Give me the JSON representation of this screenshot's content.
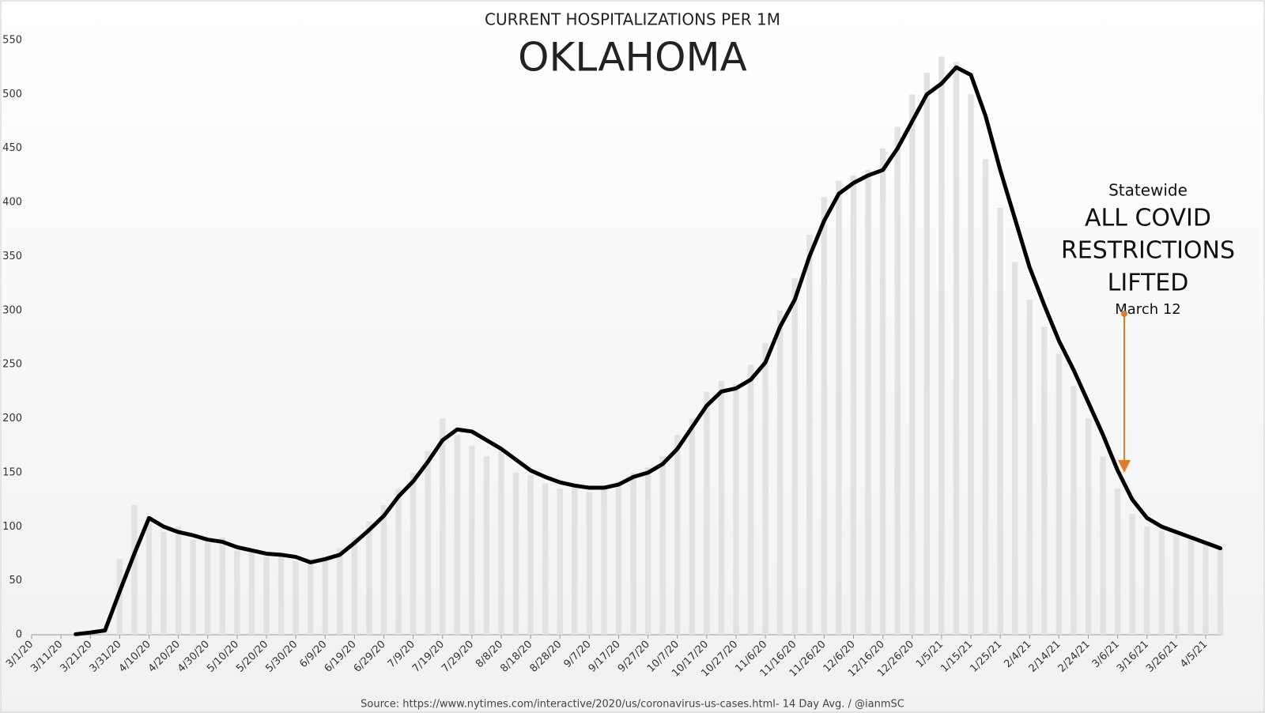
{
  "chart_data": {
    "type": "line",
    "title": "CURRENT HOSPITALIZATIONS PER 1M",
    "subtitle": "OKLAHOMA",
    "source": "Source: https://www.nytimes.com/interactive/2020/us/coronavirus-us-cases.html- 14 Day Avg. / @ianmSC",
    "annotation": {
      "lines": [
        "Statewide",
        "ALL COVID",
        "RESTRICTIONS",
        "LIFTED"
      ],
      "date": "March 12",
      "color": "#e07b2a"
    },
    "categories": [
      "3/1/20",
      null,
      "3/11/20",
      null,
      "3/21/20",
      null,
      "3/31/20",
      null,
      "4/10/20",
      null,
      "4/20/20",
      null,
      "4/30/20",
      null,
      "5/10/20",
      null,
      "5/20/20",
      null,
      "5/30/20",
      null,
      "6/9/20",
      null,
      "6/19/20",
      null,
      "6/29/20",
      null,
      "7/9/20",
      null,
      "7/19/20",
      null,
      "7/29/20",
      null,
      "8/8/20",
      null,
      "8/18/20",
      null,
      "8/28/20",
      null,
      "9/7/20",
      null,
      "9/17/20",
      null,
      "9/27/20",
      null,
      "10/7/20",
      null,
      "10/17/20",
      null,
      "10/27/20",
      null,
      "11/6/20",
      null,
      "11/16/20",
      null,
      "11/26/20",
      null,
      "12/6/20",
      null,
      "12/16/20",
      null,
      "12/26/20",
      null,
      "1/5/21",
      null,
      "1/15/21",
      null,
      "1/25/21",
      null,
      "2/4/21",
      null,
      "2/14/21",
      null,
      "2/24/21",
      null,
      "3/6/21",
      null,
      "3/16/21",
      null,
      "3/26/21",
      null,
      "4/5/21",
      null
    ],
    "series": [
      {
        "type": "bar",
        "color": "#e2e2e2",
        "values": [
          null,
          null,
          null,
          1,
          3,
          6,
          70,
          120,
          110,
          95,
          100,
          88,
          85,
          90,
          78,
          80,
          72,
          76,
          68,
          70,
          72,
          80,
          90,
          105,
          120,
          135,
          150,
          170,
          200,
          185,
          175,
          165,
          170,
          150,
          148,
          140,
          135,
          140,
          132,
          138,
          142,
          150,
          155,
          165,
          185,
          200,
          225,
          235,
          232,
          250,
          270,
          300,
          330,
          370,
          405,
          420,
          425,
          430,
          450,
          470,
          500,
          520,
          535,
          530,
          500,
          440,
          395,
          345,
          310,
          285,
          260,
          230,
          200,
          165,
          135,
          112,
          100,
          96,
          92,
          88,
          84,
          80
        ]
      },
      {
        "type": "line",
        "color": "#000000",
        "values": [
          null,
          null,
          null,
          0.5,
          2,
          4,
          40,
          75,
          108,
          100,
          95,
          92,
          88,
          86,
          81,
          78,
          75,
          74,
          72,
          67,
          70,
          74,
          85,
          97,
          110,
          128,
          142,
          160,
          180,
          190,
          188,
          180,
          172,
          162,
          152,
          146,
          141,
          138,
          136,
          136,
          139,
          146,
          150,
          158,
          172,
          192,
          212,
          225,
          228,
          236,
          252,
          285,
          310,
          350,
          383,
          408,
          418,
          425,
          430,
          450,
          475,
          500,
          510,
          525,
          518,
          480,
          430,
          385,
          340,
          305,
          272,
          245,
          215,
          185,
          152,
          125,
          108,
          100,
          95,
          90,
          85,
          80
        ]
      }
    ],
    "ylim": [
      0,
      550
    ],
    "yticks": [
      0,
      50,
      100,
      150,
      200,
      250,
      300,
      350,
      400,
      450,
      500,
      550
    ],
    "grid": false
  }
}
